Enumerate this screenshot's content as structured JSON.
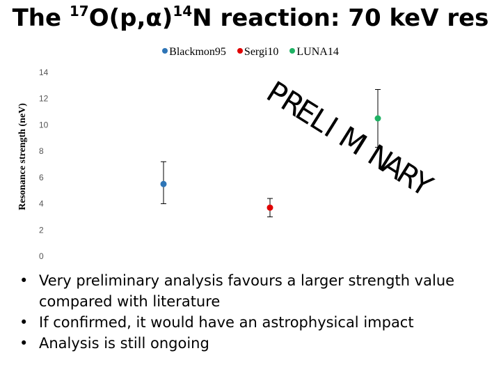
{
  "slide": {
    "title_prefix": "The",
    "title_iso1": "17",
    "title_mid": "O(p,",
    "title_alpha": "α",
    "title_close": ")",
    "title_iso2": "14",
    "title_suffix": "N reaction: 70 keV res",
    "watermark": "PRELIMINARY",
    "bullets": [
      "Very preliminary analysis favours a larger strength value compared with literature",
      "If confirmed, it would have an astrophysical impact",
      "Analysis is still ongoing"
    ]
  },
  "chart_data": {
    "type": "scatter",
    "title": "",
    "xlabel": "",
    "ylabel": "Resonance strength (neV)",
    "ylim": [
      0,
      14
    ],
    "yticks": [
      "0",
      "2",
      "4",
      "6",
      "8",
      "10",
      "12",
      "14"
    ],
    "grid": false,
    "legend_position": "top-center",
    "series": [
      {
        "name": "Blackmon95",
        "color": "#2e75b6",
        "x": 1,
        "y": 5.5,
        "err_low": 4.0,
        "err_high": 7.2
      },
      {
        "name": "Sergi10",
        "color": "#e00000",
        "x": 2,
        "y": 3.7,
        "err_low": 3.0,
        "err_high": 4.4
      },
      {
        "name": "LUNA14",
        "color": "#1fb264",
        "x": 3,
        "y": 10.5,
        "err_low": 8.3,
        "err_high": 12.7
      }
    ]
  }
}
